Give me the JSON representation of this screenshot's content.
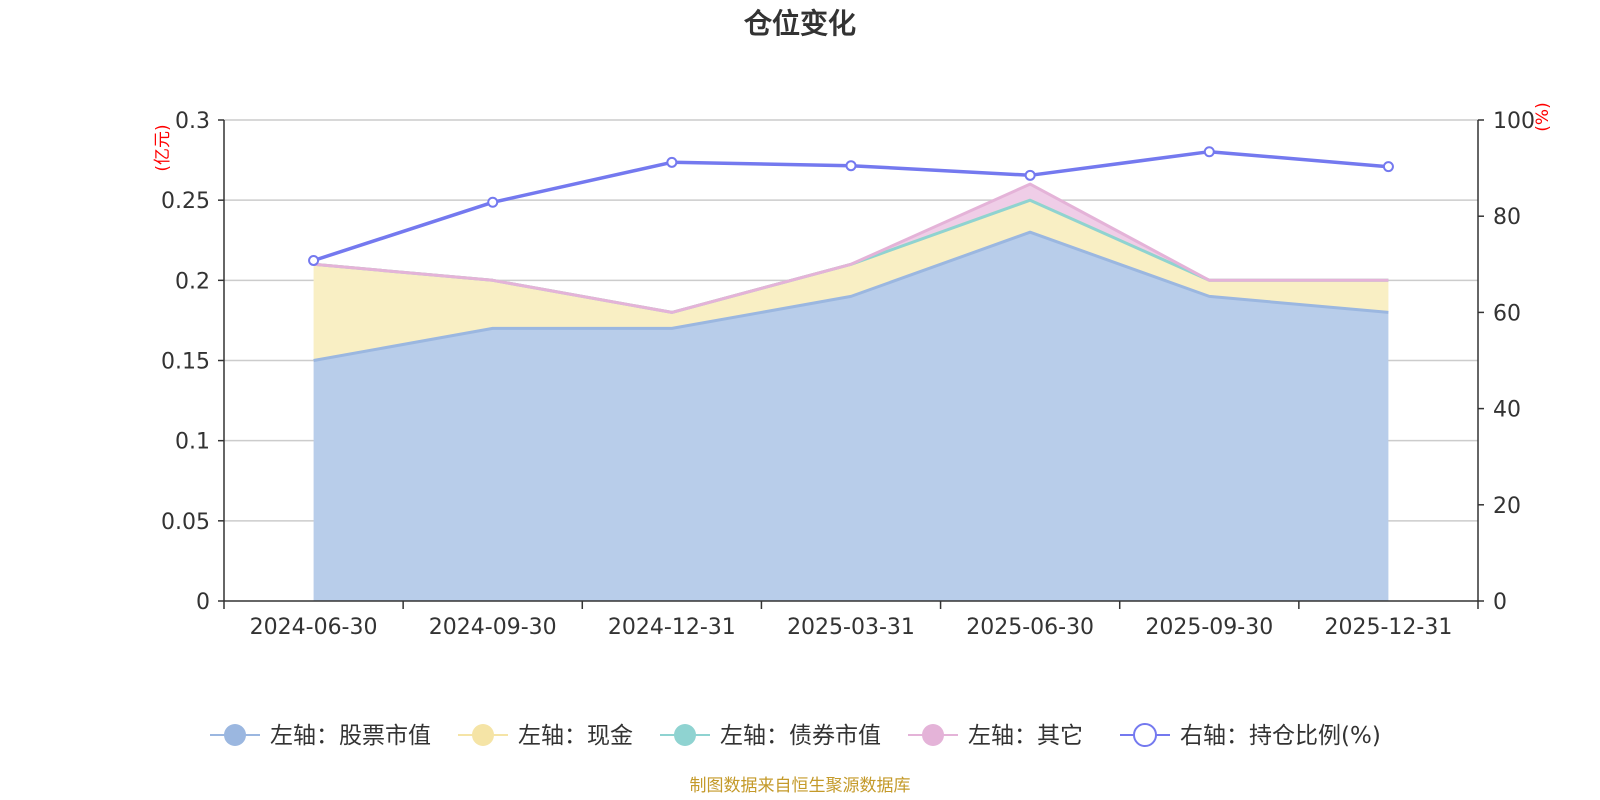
{
  "chart_data": {
    "type": "area",
    "title": "仓位变化",
    "categories": [
      "2024-06-30",
      "2024-09-30",
      "2024-12-31",
      "2025-03-31",
      "2025-06-30",
      "2025-09-30",
      "2025-12-31"
    ],
    "left_axis": {
      "unit": "(亿元)",
      "ylim": [
        0,
        0.3
      ],
      "ticks": [
        "0",
        "0.05",
        "0.1",
        "0.15",
        "0.2",
        "0.25",
        "0.3"
      ]
    },
    "right_axis": {
      "unit": "(%)",
      "ylim": [
        0,
        100
      ],
      "ticks": [
        "0",
        "20",
        "40",
        "60",
        "80",
        "100"
      ]
    },
    "stacked": true,
    "series": [
      {
        "name": "左轴：股票市值",
        "axis": "left",
        "color": "#9bb7e0",
        "fill": "#b8cdea",
        "values": [
          0.15,
          0.17,
          0.17,
          0.19,
          0.23,
          0.19,
          0.18
        ]
      },
      {
        "name": "左轴：现金",
        "axis": "left",
        "color": "#f5e4a6",
        "fill": "#f9efc4",
        "values": [
          0.06,
          0.03,
          0.01,
          0.02,
          0.02,
          0.01,
          0.02
        ]
      },
      {
        "name": "左轴：债券市值",
        "axis": "left",
        "color": "#8fd3d1",
        "fill": "#c2e8e7",
        "values": [
          0,
          0,
          0,
          0,
          0,
          0,
          0
        ]
      },
      {
        "name": "左轴：其它",
        "axis": "left",
        "color": "#e4b3d8",
        "fill": "#efcde7",
        "values": [
          0,
          0,
          0,
          0,
          0.01,
          0,
          0
        ]
      },
      {
        "name": "右轴：持仓比例(%)",
        "axis": "right",
        "type": "line",
        "color": "#7479ef",
        "values": [
          70.8,
          82.9,
          91.2,
          90.5,
          88.5,
          93.4,
          90.3
        ]
      }
    ],
    "grid": true,
    "legend": "bottom"
  },
  "footer": "制图数据来自恒生聚源数据库"
}
